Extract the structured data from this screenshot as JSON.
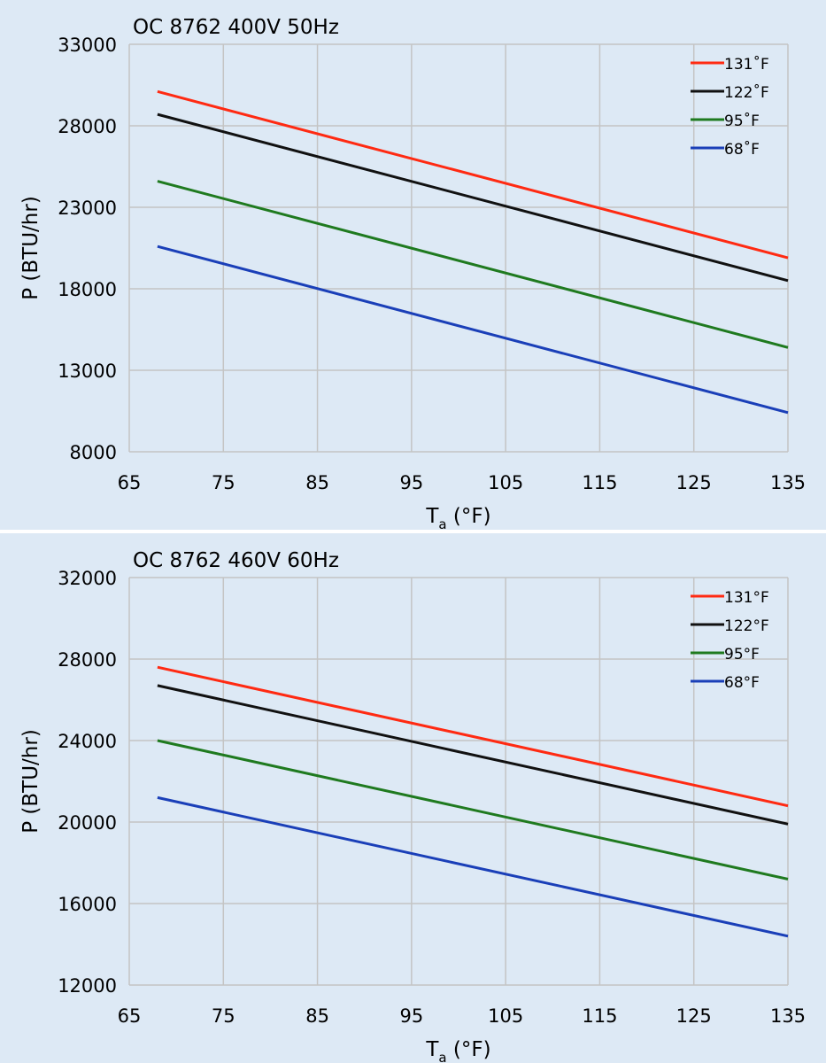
{
  "chart_data": [
    {
      "type": "line",
      "title": "OC 8762 400V 50Hz",
      "xlabel_main": "T",
      "xlabel_sub": "a",
      "xlabel_unit": " (°F)",
      "ylabel": "P (BTU/hr)",
      "xlim": [
        65,
        135
      ],
      "ylim": [
        8000,
        33000
      ],
      "x_ticks": [
        65,
        75,
        85,
        95,
        105,
        115,
        125,
        135
      ],
      "y_ticks": [
        8000,
        13000,
        18000,
        23000,
        28000,
        33000
      ],
      "grid": true,
      "legend_position": "top-right",
      "series": [
        {
          "name": "131˚F",
          "color": "#ff2a12",
          "x": [
            68,
            135
          ],
          "y": [
            30100,
            19900
          ]
        },
        {
          "name": "122˚F",
          "color": "#111111",
          "x": [
            68,
            135
          ],
          "y": [
            28700,
            18500
          ]
        },
        {
          "name": "95˚F",
          "color": "#1f7a1f",
          "x": [
            68,
            135
          ],
          "y": [
            24600,
            14400
          ]
        },
        {
          "name": "68˚F",
          "color": "#1a3fb8",
          "x": [
            68,
            135
          ],
          "y": [
            20600,
            10400
          ]
        }
      ]
    },
    {
      "type": "line",
      "title": "OC 8762 460V 60Hz",
      "xlabel_main": "T",
      "xlabel_sub": "a",
      "xlabel_unit": " (°F)",
      "ylabel": "P (BTU/hr)",
      "xlim": [
        65,
        135
      ],
      "ylim": [
        12000,
        32000
      ],
      "x_ticks": [
        65,
        75,
        85,
        95,
        105,
        115,
        125,
        135
      ],
      "y_ticks": [
        12000,
        16000,
        20000,
        24000,
        28000,
        32000
      ],
      "grid": true,
      "legend_position": "top-right",
      "series": [
        {
          "name": "131°F",
          "color": "#ff2a12",
          "x": [
            68,
            135
          ],
          "y": [
            27600,
            20800
          ]
        },
        {
          "name": "122°F",
          "color": "#111111",
          "x": [
            68,
            135
          ],
          "y": [
            26700,
            19900
          ]
        },
        {
          "name": "95°F",
          "color": "#1f7a1f",
          "x": [
            68,
            135
          ],
          "y": [
            24000,
            17200
          ]
        },
        {
          "name": "68°F",
          "color": "#1a3fb8",
          "x": [
            68,
            135
          ],
          "y": [
            21200,
            14400
          ]
        }
      ]
    }
  ]
}
